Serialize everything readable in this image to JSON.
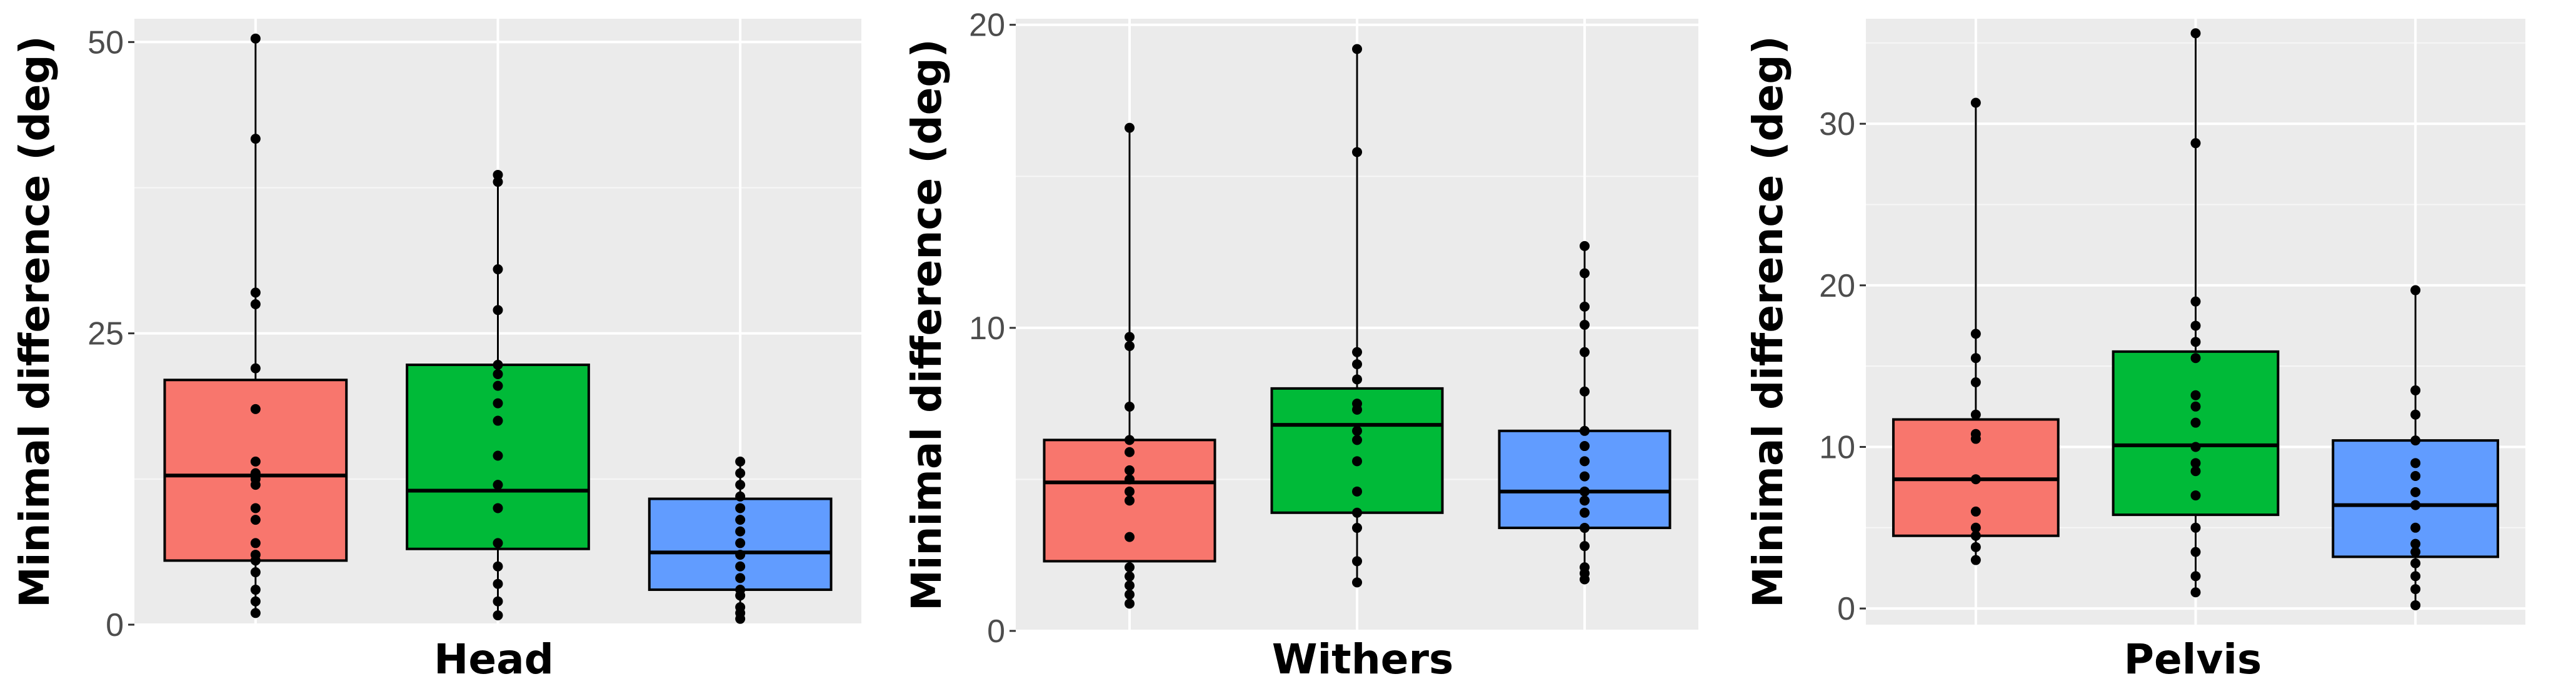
{
  "chart_data": [
    {
      "type": "box",
      "xlabel": "Head",
      "ylabel": "Minimal difference (deg)",
      "ylim": [
        0,
        52
      ],
      "yticks": [
        0,
        25,
        50
      ],
      "grid": true,
      "boxes": [
        {
          "color": "#f8766d",
          "q1": 5.5,
          "median": 12.8,
          "q3": 21.0,
          "whisker_low": 1.0,
          "whisker_high": 50.3,
          "points": [
            1,
            2,
            3,
            4.5,
            5.5,
            6,
            7,
            9,
            10,
            12,
            12.5,
            13,
            14,
            18.5,
            22,
            27.5,
            28.5,
            41.7,
            50.3
          ]
        },
        {
          "color": "#00ba38",
          "q1": 6.5,
          "median": 11.5,
          "q3": 22.3,
          "whisker_low": 0.8,
          "whisker_high": 38.6,
          "points": [
            0.8,
            2,
            3.5,
            5,
            7,
            10,
            12,
            14.5,
            17.5,
            19,
            20.5,
            21.5,
            22.3,
            27,
            30.5,
            38,
            38.6
          ]
        },
        {
          "color": "#619cff",
          "q1": 3.0,
          "median": 6.2,
          "q3": 10.8,
          "whisker_low": 0.5,
          "whisker_high": 14.0,
          "points": [
            0.5,
            1,
            1.5,
            2.5,
            3,
            4,
            5,
            6,
            7,
            8,
            9,
            10,
            11,
            12,
            13,
            14
          ]
        }
      ]
    },
    {
      "type": "box",
      "xlabel": "Withers",
      "ylabel": "Minimal difference (deg)",
      "ylim": [
        0,
        20.2
      ],
      "yticks": [
        0,
        10,
        20
      ],
      "grid": true,
      "boxes": [
        {
          "color": "#f8766d",
          "q1": 2.3,
          "median": 4.9,
          "q3": 6.3,
          "whisker_low": 0.9,
          "whisker_high": 16.6,
          "points": [
            0.9,
            1.2,
            1.5,
            1.8,
            2.1,
            3.1,
            4.3,
            4.6,
            5,
            5.3,
            5.9,
            6.3,
            7.4,
            9.4,
            9.7,
            16.6
          ]
        },
        {
          "color": "#00ba38",
          "q1": 3.9,
          "median": 6.8,
          "q3": 8.0,
          "whisker_low": 1.6,
          "whisker_high": 19.2,
          "points": [
            1.6,
            2.3,
            3.4,
            3.9,
            4.6,
            5.6,
            6.3,
            6.6,
            7.3,
            7.5,
            8.3,
            8.8,
            9.2,
            15.8,
            19.2
          ]
        },
        {
          "color": "#619cff",
          "q1": 3.4,
          "median": 4.6,
          "q3": 6.6,
          "whisker_low": 1.7,
          "whisker_high": 12.7,
          "points": [
            1.7,
            1.9,
            2.1,
            2.8,
            3.4,
            3.9,
            4.3,
            4.6,
            5.1,
            5.6,
            6.1,
            6.6,
            7.9,
            9.2,
            10.1,
            10.7,
            11.8,
            12.7
          ]
        }
      ]
    },
    {
      "type": "box",
      "xlabel": "Pelvis",
      "ylabel": "Minimal difference (deg)",
      "ylim": [
        -1,
        36.5
      ],
      "yticks": [
        0,
        10,
        20,
        30
      ],
      "grid": true,
      "boxes": [
        {
          "color": "#f8766d",
          "q1": 4.5,
          "median": 8.0,
          "q3": 11.7,
          "whisker_low": 3.0,
          "whisker_high": 31.3,
          "points": [
            3,
            3.8,
            4.5,
            5,
            6,
            8,
            10.5,
            10.8,
            12,
            14,
            15.5,
            17,
            31.3
          ]
        },
        {
          "color": "#00ba38",
          "q1": 5.8,
          "median": 10.1,
          "q3": 15.9,
          "whisker_low": 1.0,
          "whisker_high": 35.6,
          "points": [
            1,
            2,
            3.5,
            5,
            7,
            8.5,
            9,
            10,
            11.5,
            12.5,
            13.2,
            15.5,
            16.5,
            17.5,
            19,
            28.8,
            35.6
          ]
        },
        {
          "color": "#619cff",
          "q1": 3.2,
          "median": 6.4,
          "q3": 10.4,
          "whisker_low": 0.2,
          "whisker_high": 19.7,
          "points": [
            0.2,
            1.2,
            2,
            2.8,
            3.5,
            4,
            5,
            6.4,
            7.2,
            8.2,
            9,
            10.4,
            12,
            13.5,
            19.7
          ]
        }
      ]
    }
  ]
}
